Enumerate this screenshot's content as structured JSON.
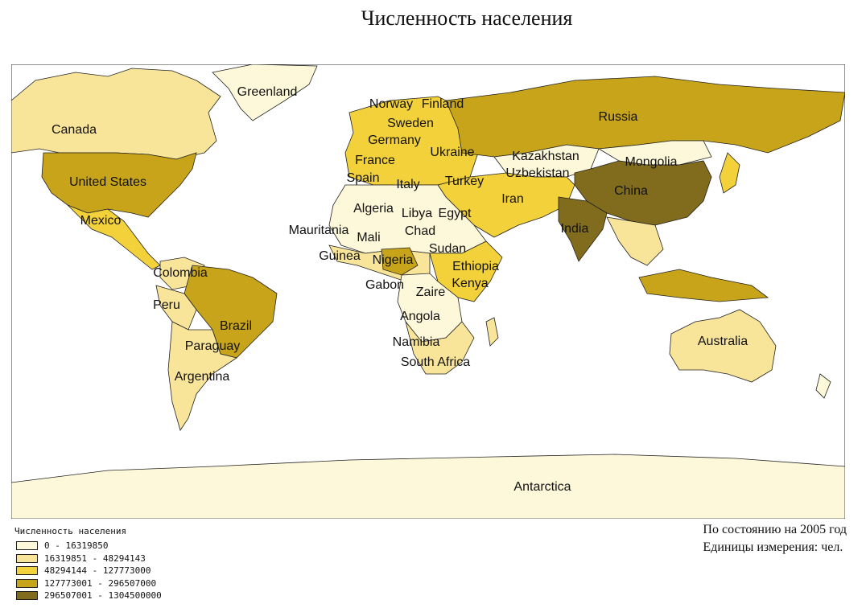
{
  "title": "Численность населения",
  "legend": {
    "title": "Численность населения",
    "classes": [
      {
        "range": "0 - 16319850",
        "color": "#fdf8d9"
      },
      {
        "range": "16319851 - 48294143",
        "color": "#f9e59a"
      },
      {
        "range": "48294144 - 127773000",
        "color": "#f3d13a"
      },
      {
        "range": "127773001 - 296507000",
        "color": "#c7a41a"
      },
      {
        "range": "296507001 - 1304500000",
        "color": "#806c1c"
      }
    ]
  },
  "note": {
    "line1": "По состоянию на 2005 год",
    "line2": "Единицы измерения: чел."
  },
  "map": {
    "ocean_color": "#ffffff",
    "border_color": "#222222",
    "labels": [
      "Greenland",
      "Canada",
      "United States",
      "Mexico",
      "Colombia",
      "Peru",
      "Brazil",
      "Paraguay",
      "Argentina",
      "Norway",
      "Finland",
      "Sweden",
      "Germany",
      "France",
      "Spain",
      "Italy",
      "Ukraine",
      "Russia",
      "Kazakhstan",
      "Uzbekistan",
      "Mongolia",
      "China",
      "India",
      "Iran",
      "Turkey",
      "Algeria",
      "Libya",
      "Egypt",
      "Mauritania",
      "Mali",
      "Chad",
      "Sudan",
      "Guinea",
      "Nigeria",
      "Ethiopia",
      "Gabon",
      "Zaire",
      "Kenya",
      "Angola",
      "Namibia",
      "South Africa",
      "Australia",
      "Antarctica"
    ]
  }
}
